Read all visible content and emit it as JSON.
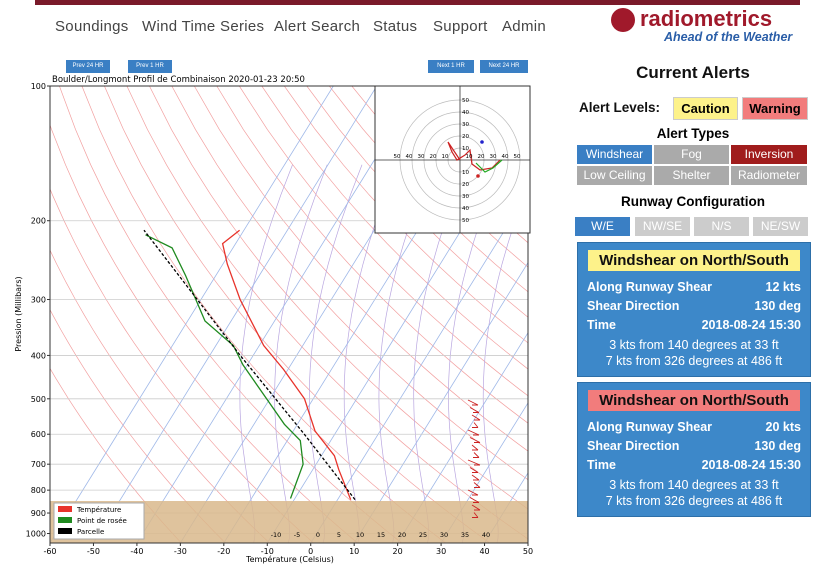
{
  "nav": {
    "items": [
      "Soundings",
      "Wind Time Series",
      "Alert Search",
      "Status",
      "Support",
      "Admin"
    ]
  },
  "logo": {
    "name": "radiometrics",
    "tagline": "Ahead of the Weather"
  },
  "time_buttons": {
    "prev_24": "Prev 24 HR",
    "prev_1": "Prev 1 HR",
    "next_1": "Next 1 HR",
    "next_24": "Next 24 HR"
  },
  "chart_data": {
    "type": "skewt",
    "title": "Boulder/Longmont Profil de Combinaison 2020-01-23 20:50",
    "x_label": "Température (Celsius)",
    "y_label": "Pression (Millibars)",
    "xlim": [
      -60,
      50
    ],
    "xticks": [
      -60,
      -50,
      -40,
      -30,
      -20,
      -10,
      0,
      10,
      20,
      30,
      40,
      50
    ],
    "ylim": [
      1050,
      100
    ],
    "yticks": [
      100,
      200,
      300,
      400,
      500,
      600,
      700,
      800,
      900,
      1000
    ],
    "log_scale_y": true,
    "grid": true,
    "legend": "lower-left",
    "series": [
      {
        "name": "Température",
        "color": "#e8332b",
        "pressure": [
          840,
          720,
          670,
          590,
          500,
          430,
          380,
          300,
          250,
          225,
          210
        ],
        "values": [
          3,
          -4,
          -7,
          -15,
          -22,
          -31,
          -39,
          -51,
          -59,
          -63,
          -61
        ]
      },
      {
        "name": "Point de rosée",
        "color": "#1f8a1f",
        "pressure": [
          835,
          700,
          620,
          570,
          515,
          465,
          420,
          380,
          335,
          265,
          230,
          215
        ],
        "values": [
          -11,
          -13,
          -17,
          -23,
          -29,
          -35,
          -41,
          -46,
          -56,
          -67,
          -74,
          -82
        ]
      },
      {
        "name": "Parcelle",
        "color": "#000000",
        "pressure": [
          840,
          600,
          400,
          210
        ],
        "values": [
          4,
          -17,
          -43,
          -83
        ]
      }
    ],
    "mixing_labels": [
      "-10",
      "-5",
      "0",
      "5",
      "10",
      "15",
      "20",
      "25",
      "30",
      "35",
      "40"
    ],
    "hodograph_ring_labels": [
      "10",
      "20",
      "30",
      "40",
      "50"
    ]
  },
  "alerts": {
    "title": "Current Alerts",
    "levels_label": "Alert Levels:",
    "caution": "Caution",
    "warning": "Warning",
    "types_title": "Alert Types",
    "types": [
      "Windshear",
      "Fog",
      "Inversion",
      "Low Ceiling",
      "Shelter",
      "Radiometer"
    ],
    "runway_title": "Runway Configuration",
    "runways": [
      "W/E",
      "NW/SE",
      "N/S",
      "NE/SW"
    ],
    "cards": [
      {
        "title": "Windshear on North/South",
        "rows": [
          [
            "Along Runway Shear",
            "12 kts"
          ],
          [
            "Shear Direction",
            "130 deg"
          ],
          [
            "Time",
            "2018-08-24 15:30"
          ]
        ],
        "lines": [
          "3 kts from 140 degrees at 33 ft",
          "7 kts from 326 degrees at 486 ft"
        ]
      },
      {
        "title": "Windshear on North/South",
        "rows": [
          [
            "Along Runway Shear",
            "20 kts"
          ],
          [
            "Shear Direction",
            "130 deg"
          ],
          [
            "Time",
            "2018-08-24 15:30"
          ]
        ],
        "lines": [
          "3 kts from 140 degrees at 33 ft",
          "7 kts from 326 degrees at 486 ft"
        ]
      }
    ]
  }
}
